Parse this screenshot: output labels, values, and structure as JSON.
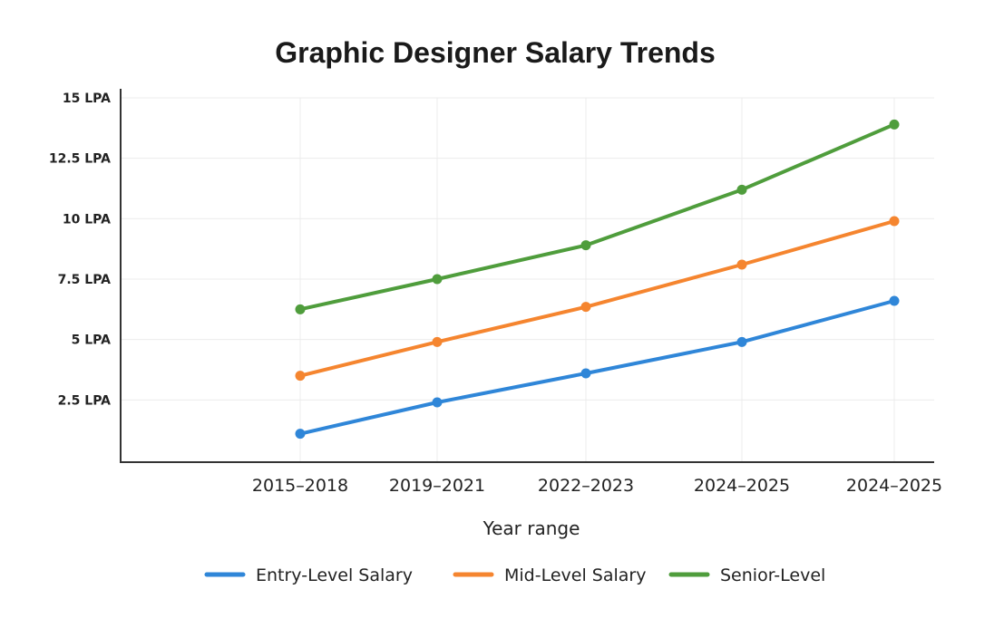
{
  "chart_data": {
    "type": "line",
    "title": "Graphic Designer Salary Trends",
    "xlabel": "Year range",
    "ylabel": "",
    "categories": [
      "2015–2018",
      "2019–2021",
      "2022–2023",
      "2024–2025",
      "2024–2025"
    ],
    "yticks": [
      2.5,
      5,
      7.5,
      10,
      12.5,
      15
    ],
    "ytick_labels": [
      "2.5 LPA",
      "5 LPA",
      "7.5 LPA",
      "10 LPA",
      "12.5 LPA",
      "15 LPA"
    ],
    "ylim": [
      0,
      15
    ],
    "grid": true,
    "legend": "bottom",
    "series": [
      {
        "name": "Entry-Level Salary",
        "color": "#2f86d8",
        "values": [
          1.1,
          2.4,
          3.6,
          4.9,
          6.6
        ]
      },
      {
        "name": "Mid-Level Salary",
        "color": "#f5852f",
        "values": [
          3.5,
          4.9,
          6.35,
          8.1,
          9.9
        ]
      },
      {
        "name": "Senior-Level",
        "color": "#4f9d3c",
        "values": [
          6.25,
          7.5,
          8.9,
          11.2,
          13.9
        ]
      }
    ]
  }
}
